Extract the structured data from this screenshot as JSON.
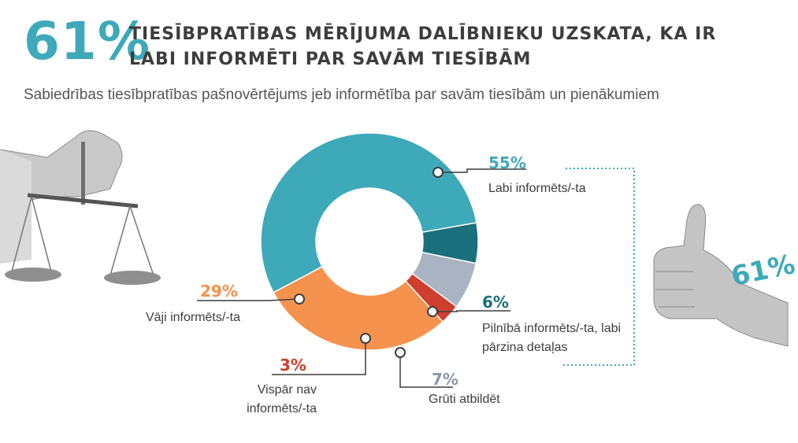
{
  "header": {
    "big_percent": "61%",
    "headline": "TIESĪBPRATĪBAS MĒRĪJUMA DALĪBNIEKU UZSKATA, KA IR LABI INFORMĒTI PAR SAVĀM TIESĪBĀM",
    "subtitle": "Sabiedrības tiesībpratības pašnovērtējums jeb informētība par savām tiesībām un pienākumiem"
  },
  "thumb_label": "61%",
  "colors": {
    "teal": "#3ea9b9",
    "dark_teal": "#1a6f7c",
    "gray_blue": "#a9b3c2",
    "red": "#cf3e2f",
    "orange": "#f5924e"
  },
  "icons": [
    "scales-hand-icon",
    "thumbs-up-icon"
  ],
  "chart_data": {
    "type": "pie",
    "donut": true,
    "slices": [
      {
        "label": "Labi informēts/-ta",
        "value": 55,
        "value_label": "55%",
        "color": "#3ea9b9"
      },
      {
        "label": "Pilnībā informēts/-ta, labi pārzina detaļas",
        "value": 6,
        "value_label": "6%",
        "color": "#1a6f7c"
      },
      {
        "label": "Grūti atbildēt",
        "value": 7,
        "value_label": "7%",
        "color": "#a9b3c2"
      },
      {
        "label": "Vispār nav informēts/-ta",
        "value": 3,
        "value_label": "3%",
        "color": "#cf3e2f"
      },
      {
        "label": "Vāji informēts/-ta",
        "value": 29,
        "value_label": "29%",
        "color": "#f5924e"
      }
    ],
    "bracket_total": "61%"
  }
}
